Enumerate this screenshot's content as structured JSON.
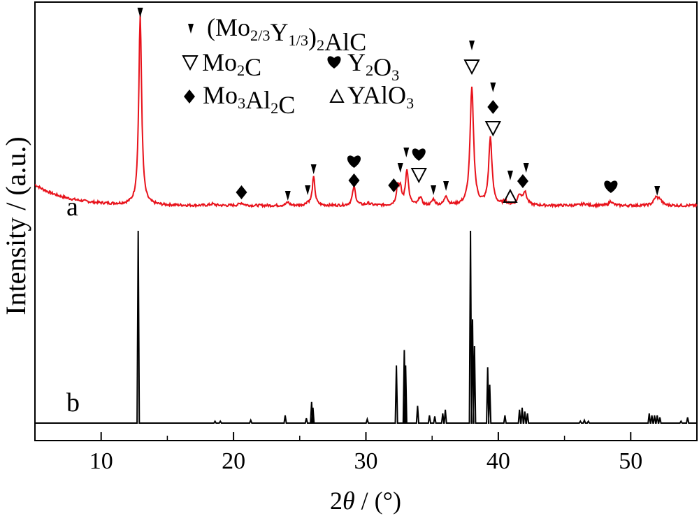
{
  "chart_data": {
    "type": "line",
    "xlabel": "2θ / (°)",
    "ylabel": "Intensity / (a.u.)",
    "xlim": [
      5,
      55
    ],
    "xticks": [
      "10",
      "20",
      "30",
      "40",
      "50"
    ],
    "grid": false,
    "legend_position": "top-center",
    "colors": {
      "a": "#e8121b",
      "b": "#000000"
    },
    "legend": [
      {
        "marker": "filled-triangle",
        "label": "(Mo2/3Y1/3)2AlC"
      },
      {
        "marker": "open-triangle",
        "label": "Mo2C"
      },
      {
        "marker": "heart",
        "label": "Y2O3"
      },
      {
        "marker": "diamond",
        "label": "Mo3Al2C"
      },
      {
        "marker": "small-open-triangle",
        "label": "YAlO3"
      }
    ],
    "series": [
      {
        "name": "a",
        "baseline": 0.4,
        "background_decay": {
          "amplitude": 1.0,
          "tau": 2.4
        },
        "peaks": [
          {
            "x": 12.95,
            "height": 9.0,
            "width": 0.13
          },
          {
            "x": 18.4,
            "height": 0.07,
            "width": 0.2
          },
          {
            "x": 20.6,
            "height": 0.12,
            "width": 0.2
          },
          {
            "x": 24.1,
            "height": 0.15,
            "width": 0.15
          },
          {
            "x": 25.6,
            "height": 0.12,
            "width": 0.15
          },
          {
            "x": 26.05,
            "height": 1.35,
            "width": 0.12
          },
          {
            "x": 29.1,
            "height": 0.9,
            "width": 0.14
          },
          {
            "x": 30.2,
            "height": 0.1,
            "width": 0.2
          },
          {
            "x": 32.4,
            "height": 0.85,
            "width": 0.12
          },
          {
            "x": 32.6,
            "height": 0.7,
            "width": 0.12
          },
          {
            "x": 33.1,
            "height": 1.7,
            "width": 0.13
          },
          {
            "x": 34.1,
            "height": 0.4,
            "width": 0.13
          },
          {
            "x": 35.1,
            "height": 0.28,
            "width": 0.13
          },
          {
            "x": 36.05,
            "height": 0.45,
            "width": 0.14
          },
          {
            "x": 38.0,
            "height": 5.6,
            "width": 0.16
          },
          {
            "x": 39.4,
            "height": 3.2,
            "width": 0.15
          },
          {
            "x": 40.5,
            "height": 0.18,
            "width": 0.15
          },
          {
            "x": 41.6,
            "height": 0.45,
            "width": 0.18
          },
          {
            "x": 42.0,
            "height": 0.6,
            "width": 0.18
          },
          {
            "x": 46.5,
            "height": 0.08,
            "width": 0.3
          },
          {
            "x": 48.5,
            "height": 0.22,
            "width": 0.15
          },
          {
            "x": 51.9,
            "height": 0.35,
            "width": 0.2
          },
          {
            "x": 52.2,
            "height": 0.25,
            "width": 0.18
          }
        ]
      },
      {
        "name": "b",
        "baseline": 0.0,
        "sticks": [
          [
            12.8,
            100
          ],
          [
            18.6,
            1
          ],
          [
            19.0,
            1
          ],
          [
            21.3,
            1.5
          ],
          [
            23.9,
            4
          ],
          [
            25.5,
            2.5
          ],
          [
            25.9,
            11
          ],
          [
            26.0,
            8
          ],
          [
            30.1,
            2
          ],
          [
            32.3,
            30
          ],
          [
            32.9,
            38
          ],
          [
            33.0,
            30
          ],
          [
            33.9,
            9
          ],
          [
            34.8,
            4
          ],
          [
            35.2,
            3.5
          ],
          [
            35.8,
            5
          ],
          [
            36.0,
            7
          ],
          [
            37.9,
            100
          ],
          [
            38.05,
            54
          ],
          [
            38.2,
            40
          ],
          [
            39.2,
            29
          ],
          [
            39.35,
            20
          ],
          [
            40.5,
            4
          ],
          [
            41.6,
            7
          ],
          [
            41.8,
            8
          ],
          [
            42.0,
            6
          ],
          [
            42.2,
            5
          ],
          [
            46.2,
            1
          ],
          [
            46.5,
            1.5
          ],
          [
            46.8,
            1
          ],
          [
            51.4,
            5
          ],
          [
            51.6,
            4
          ],
          [
            51.8,
            4
          ],
          [
            52.0,
            4
          ],
          [
            52.2,
            3
          ],
          [
            53.8,
            1
          ],
          [
            54.3,
            3
          ]
        ]
      }
    ],
    "annotations": [
      {
        "x": 12.95,
        "markers": [
          "filled-triangle"
        ]
      },
      {
        "x": 20.6,
        "markers": [
          "diamond"
        ]
      },
      {
        "x": 24.1,
        "markers": [
          "filled-triangle"
        ]
      },
      {
        "x": 25.6,
        "markers": [
          "filled-triangle"
        ]
      },
      {
        "x": 26.05,
        "markers": [
          "filled-triangle"
        ]
      },
      {
        "x": 29.1,
        "markers": [
          "heart",
          "diamond"
        ]
      },
      {
        "x": 32.1,
        "markers": [
          "diamond"
        ]
      },
      {
        "x": 32.6,
        "markers": [
          "filled-triangle"
        ]
      },
      {
        "x": 33.05,
        "markers": [
          "filled-triangle"
        ]
      },
      {
        "x": 34.0,
        "markers": [
          "heart",
          "open-triangle"
        ]
      },
      {
        "x": 35.1,
        "markers": [
          "filled-triangle"
        ]
      },
      {
        "x": 36.05,
        "markers": [
          "filled-triangle"
        ]
      },
      {
        "x": 38.0,
        "markers": [
          "filled-triangle",
          "open-triangle"
        ]
      },
      {
        "x": 39.6,
        "markers": [
          "filled-triangle",
          "diamond",
          "open-triangle"
        ]
      },
      {
        "x": 40.9,
        "markers": [
          "filled-triangle",
          "small-open-triangle"
        ]
      },
      {
        "x": 41.85,
        "markers": [
          "diamond"
        ]
      },
      {
        "x": 42.1,
        "markers": [
          "filled-triangle"
        ]
      },
      {
        "x": 48.5,
        "markers": [
          "heart"
        ]
      },
      {
        "x": 52.0,
        "markers": [
          "filled-triangle"
        ]
      }
    ],
    "trace_labels": [
      {
        "series": "a",
        "label": "a"
      },
      {
        "series": "b",
        "label": "b"
      }
    ]
  }
}
